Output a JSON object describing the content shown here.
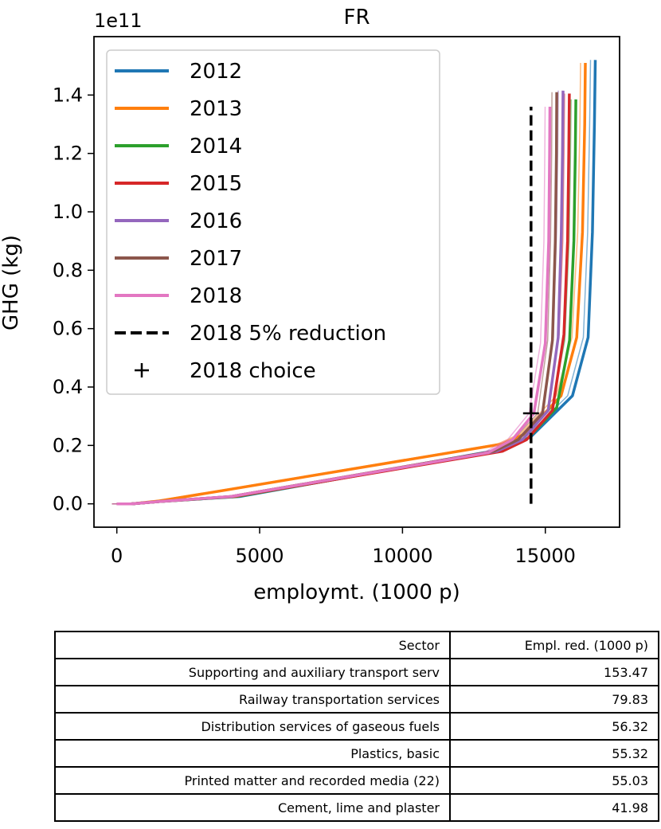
{
  "chart_data": {
    "type": "line",
    "title": "FR",
    "y_offset_label": "1e11",
    "xlabel": "employmt. (1000 p)",
    "ylabel": "GHG (kg)",
    "xlim": [
      -800,
      17600
    ],
    "ylim": [
      -0.08,
      1.6
    ],
    "x_ticks": [
      0,
      5000,
      10000,
      15000
    ],
    "x_tick_labels": [
      "0",
      "5000",
      "10000",
      "15000"
    ],
    "y_ticks": [
      0.0,
      0.2,
      0.4,
      0.6,
      0.8,
      1.0,
      1.2,
      1.4
    ],
    "y_tick_labels": [
      "0.0",
      "0.2",
      "0.4",
      "0.6",
      "0.8",
      "1.0",
      "1.2",
      "1.4"
    ],
    "grid": false,
    "legend_position": "top-left",
    "series": [
      {
        "name": "2012",
        "color": "#1f77b4",
        "x": [
          0,
          500,
          1500,
          4300,
          13700,
          14500,
          15950,
          16500,
          16650,
          16720,
          16750
        ],
        "y": [
          0,
          0,
          0.008,
          0.025,
          0.19,
          0.23,
          0.37,
          0.57,
          0.93,
          1.3,
          1.52
        ]
      },
      {
        "name": "2013",
        "color": "#ff7f0e",
        "x": [
          0,
          500,
          1500,
          4000,
          13500,
          14300,
          15550,
          16100,
          16300,
          16380,
          16400
        ],
        "y": [
          0,
          0,
          0.01,
          0.05,
          0.205,
          0.24,
          0.37,
          0.57,
          0.93,
          1.3,
          1.51
        ]
      },
      {
        "name": "2014",
        "color": "#2ca02c",
        "x": [
          0,
          500,
          1500,
          4200,
          13600,
          14400,
          15400,
          15850,
          16000,
          16050,
          16070
        ],
        "y": [
          0,
          0,
          0.008,
          0.025,
          0.185,
          0.225,
          0.33,
          0.56,
          0.9,
          1.2,
          1.385
        ]
      },
      {
        "name": "2015",
        "color": "#d62728",
        "x": [
          0,
          500,
          1500,
          4100,
          13500,
          14350,
          15250,
          15650,
          15780,
          15820,
          15840
        ],
        "y": [
          0,
          0,
          0.008,
          0.025,
          0.18,
          0.22,
          0.32,
          0.58,
          0.9,
          1.2,
          1.405
        ]
      },
      {
        "name": "2016",
        "color": "#9467bd",
        "x": [
          0,
          500,
          1500,
          4000,
          13300,
          14200,
          15100,
          15450,
          15560,
          15600,
          15620
        ],
        "y": [
          0,
          0,
          0.008,
          0.025,
          0.18,
          0.22,
          0.32,
          0.57,
          0.93,
          1.2,
          1.415
        ]
      },
      {
        "name": "2017",
        "color": "#8c564b",
        "x": [
          0,
          500,
          1500,
          4000,
          13200,
          14050,
          14900,
          15250,
          15350,
          15390,
          15400
        ],
        "y": [
          0,
          0,
          0.008,
          0.025,
          0.18,
          0.22,
          0.31,
          0.56,
          0.9,
          1.2,
          1.41
        ]
      },
      {
        "name": "2018",
        "color": "#e377c2",
        "x": [
          0,
          500,
          1500,
          4000,
          13000,
          13850,
          14600,
          15000,
          15120,
          15150,
          15160
        ],
        "y": [
          0,
          0,
          0.008,
          0.025,
          0.175,
          0.22,
          0.31,
          0.55,
          0.9,
          1.2,
          1.36
        ]
      }
    ],
    "reduction_line": {
      "name": "2018 5% reduction",
      "color": "#000000",
      "x": 14500,
      "y_range": [
        0,
        1.36
      ]
    },
    "choice_point": {
      "name": "2018 choice",
      "color": "#000000",
      "x": 14500,
      "y": 0.31
    }
  },
  "table": {
    "headers": [
      "Sector",
      "Empl. red. (1000 p)"
    ],
    "rows": [
      [
        "Supporting and auxiliary transport serv",
        "153.47"
      ],
      [
        "Railway transportation services",
        "79.83"
      ],
      [
        "Distribution services of gaseous fuels",
        "56.32"
      ],
      [
        "Plastics, basic",
        "55.32"
      ],
      [
        "Printed matter and recorded media (22)",
        "55.03"
      ],
      [
        "Cement, lime and plaster",
        "41.98"
      ]
    ]
  }
}
